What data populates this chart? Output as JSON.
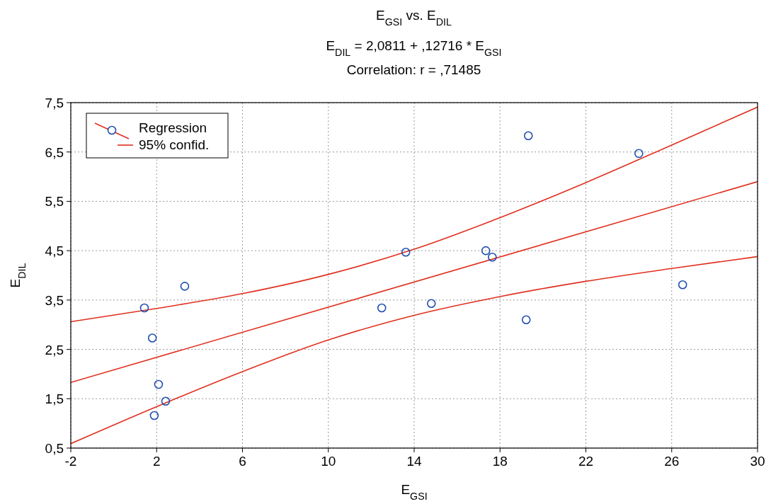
{
  "chart_data": {
    "type": "scatter",
    "title": "E$_{GSI}$ vs. E$_{DIL}$",
    "subtitle": "E$_{DIL}$ = 2,0811 + ,12716 * E$_{GSI}$",
    "annotations": [
      "Correlation: r = ,71485"
    ],
    "xlabel": "E$_{GSI}$",
    "ylabel": "E$_{DIL}$",
    "xlim": [
      -2,
      30
    ],
    "ylim": [
      0.5,
      7.5
    ],
    "xticks": [
      -2,
      2,
      6,
      10,
      14,
      18,
      22,
      26,
      30
    ],
    "yticks": [
      {
        "value": 0.5,
        "label": "0,5"
      },
      {
        "value": 1.5,
        "label": "1,5"
      },
      {
        "value": 2.5,
        "label": "2,5"
      },
      {
        "value": 3.5,
        "label": "3,5"
      },
      {
        "value": 4.5,
        "label": "4,5"
      },
      {
        "value": 5.5,
        "label": "5,5"
      },
      {
        "value": 6.5,
        "label": "6,5"
      },
      {
        "value": 7.5,
        "label": "7,5"
      }
    ],
    "grid": true,
    "legend": "top left",
    "series": [
      {
        "marker": "circle",
        "color": "#1f4fb0",
        "x": [
          1.43,
          1.8,
          2.09,
          2.42,
          1.89,
          3.31,
          12.49,
          13.61,
          14.8,
          17.34,
          17.64,
          19.22,
          19.32,
          24.47,
          26.51
        ],
        "values": [
          3.34,
          2.73,
          1.79,
          1.45,
          1.16,
          3.78,
          3.34,
          4.47,
          3.43,
          4.5,
          4.37,
          3.1,
          6.83,
          6.47,
          3.81
        ]
      },
      {
        "type": "line",
        "name": "Regression",
        "color": "#e0301e",
        "x": [
          -2,
          30
        ],
        "values": [
          1.83,
          5.9
        ]
      },
      {
        "type": "line",
        "name": "95% confid.",
        "color": "#e0301e",
        "x": [
          -2,
          2,
          6,
          10,
          14,
          18,
          22,
          26,
          30
        ],
        "values": [
          3.06,
          3.33,
          3.63,
          4.02,
          4.53,
          5.17,
          5.88,
          6.64,
          7.41
        ]
      },
      {
        "type": "line",
        "color": "#e0301e",
        "x": [
          -2,
          2,
          6,
          10,
          14,
          18,
          22,
          26,
          30
        ],
        "values": [
          0.59,
          1.34,
          2.05,
          2.69,
          3.19,
          3.57,
          3.88,
          4.14,
          4.38
        ]
      }
    ]
  }
}
